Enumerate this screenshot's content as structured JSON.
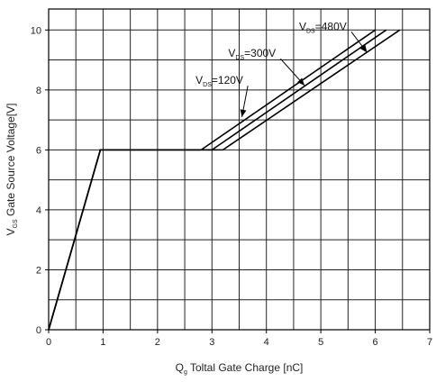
{
  "chart_data": {
    "type": "line",
    "xlabel": {
      "main": "Q",
      "sub": "g",
      "rest": " Toltal Gate Charge [nC]"
    },
    "ylabel": {
      "main": "V",
      "sub": "GS",
      "rest": " Gate Source Voltage[V]"
    },
    "xlim": [
      0,
      7
    ],
    "ylim": [
      0,
      10.7
    ],
    "x_ticks": [
      "0",
      "1",
      "2",
      "3",
      "4",
      "5",
      "6",
      "7"
    ],
    "y_ticks": [
      "0",
      "2",
      "4",
      "6",
      "8",
      "10"
    ],
    "x_tick_values": [
      0,
      1,
      2,
      3,
      4,
      5,
      6,
      7
    ],
    "y_tick_values": [
      0,
      2,
      4,
      6,
      8,
      10
    ],
    "grid": true,
    "series": [
      {
        "name": "VDS=120V",
        "x": [
          0,
          0.95,
          2.8,
          6.0
        ],
        "y": [
          0,
          6,
          6,
          10
        ]
      },
      {
        "name": "VDS=300V",
        "x": [
          0,
          0.95,
          3.0,
          6.2
        ],
        "y": [
          0,
          6,
          6,
          10
        ]
      },
      {
        "name": "VDS=480V",
        "x": [
          0,
          0.95,
          3.2,
          6.45
        ],
        "y": [
          0,
          6,
          6,
          10
        ]
      }
    ],
    "annotations": [
      {
        "main": "V",
        "sub": "DS",
        "rest": "=120V",
        "label_at": [
          2.7,
          8.2
        ],
        "arrow_to": [
          3.55,
          7.1
        ]
      },
      {
        "main": "V",
        "sub": "DS",
        "rest": "=300V",
        "label_at": [
          3.3,
          9.1
        ],
        "arrow_to": [
          4.7,
          8.15
        ]
      },
      {
        "main": "V",
        "sub": "DS",
        "rest": "=480V",
        "label_at": [
          4.6,
          10.0
        ],
        "arrow_to": [
          5.85,
          9.25
        ]
      }
    ]
  }
}
